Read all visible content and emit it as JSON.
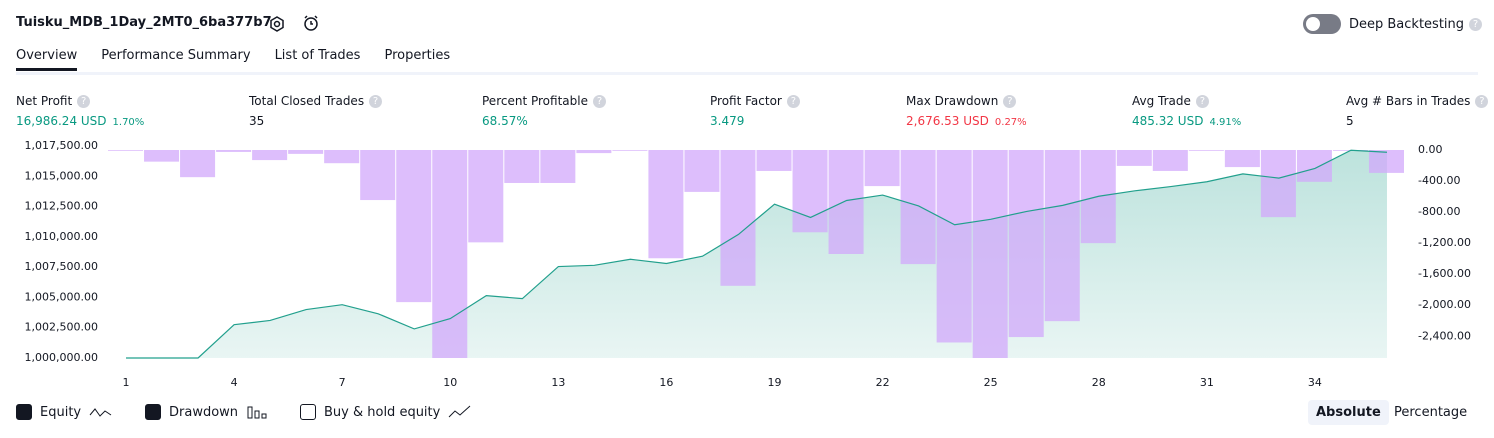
{
  "header": {
    "title": "Tuisku_MDB_1Day_2MT0_6ba377b7",
    "deep_backtesting": "Deep Backtesting"
  },
  "tabs": [
    "Overview",
    "Performance Summary",
    "List of Trades",
    "Properties"
  ],
  "metrics": [
    {
      "label": "Net Profit",
      "value": "16,986.24 USD",
      "pct": "1.70%",
      "tone": "pos"
    },
    {
      "label": "Total Closed Trades",
      "value": "35",
      "tone": "neutral"
    },
    {
      "label": "Percent Profitable",
      "value": "68.57%",
      "tone": "pos"
    },
    {
      "label": "Profit Factor",
      "value": "3.479",
      "tone": "pos"
    },
    {
      "label": "Max Drawdown",
      "value": "2,676.53 USD",
      "pct": "0.27%",
      "tone": "neg"
    },
    {
      "label": "Avg Trade",
      "value": "485.32 USD",
      "pct": "4.91%",
      "tone": "pos"
    },
    {
      "label": "Avg # Bars in Trades",
      "value": "5",
      "tone": "neutral"
    }
  ],
  "chart_data": {
    "type": "equity-drawdown",
    "x": [
      1,
      2,
      3,
      4,
      5,
      6,
      7,
      8,
      9,
      10,
      11,
      12,
      13,
      14,
      15,
      16,
      17,
      18,
      19,
      20,
      21,
      22,
      23,
      24,
      25,
      26,
      27,
      28,
      29,
      30,
      31,
      32,
      33,
      34,
      35,
      36
    ],
    "xlim": [
      0.5,
      36.5
    ],
    "xticks": [
      1,
      4,
      7,
      10,
      13,
      16,
      19,
      22,
      25,
      28,
      31,
      34
    ],
    "ylim": [
      1000000,
      1017500
    ],
    "yticks": [
      {
        "value": 1000000,
        "label": "1,000,000.00"
      },
      {
        "value": 1002500,
        "label": "1,002,500.00"
      },
      {
        "value": 1005000,
        "label": "1,005,000.00"
      },
      {
        "value": 1007500,
        "label": "1,007,500.00"
      },
      {
        "value": 1010000,
        "label": "1,010,000.00"
      },
      {
        "value": 1012500,
        "label": "1,012,500.00"
      },
      {
        "value": 1015000,
        "label": "1,015,000.00"
      },
      {
        "value": 1017500,
        "label": "1,017,500.00"
      }
    ],
    "y2lim": [
      -2680,
      0
    ],
    "y2ticks": [
      {
        "value": 0,
        "label": "0.00"
      },
      {
        "value": -400,
        "label": "-400.00"
      },
      {
        "value": -800,
        "label": "-800.00"
      },
      {
        "value": -1200,
        "label": "-1,200.00"
      },
      {
        "value": -1600,
        "label": "-1,600.00"
      },
      {
        "value": -2000,
        "label": "-2,000.00"
      },
      {
        "value": -2400,
        "label": "-2,400.00"
      }
    ],
    "series": [
      {
        "name": "Equity",
        "color": "#22a08d",
        "kind": "area",
        "values": [
          1000000,
          1000000,
          1000000,
          1002750,
          1003100,
          1004000,
          1004400,
          1003650,
          1002400,
          1003250,
          1005150,
          1004900,
          1007550,
          1007650,
          1008150,
          1007800,
          1008400,
          1010200,
          1012700,
          1011600,
          1013000,
          1013450,
          1012550,
          1011000,
          1011450,
          1012100,
          1012600,
          1013350,
          1013800,
          1014150,
          1014550,
          1015200,
          1014850,
          1015650,
          1017150,
          1016986
        ]
      },
      {
        "name": "Drawdown",
        "color": "#d1a8fb",
        "kind": "bar",
        "axis": "y2",
        "values": [
          -10,
          -150,
          -350,
          -25,
          -130,
          -50,
          -170,
          -645,
          -1960,
          -2680,
          -1190,
          -425,
          -425,
          -40,
          0,
          -1395,
          -540,
          -1750,
          -270,
          -1060,
          -1340,
          -465,
          -1470,
          -2480,
          -2680,
          -2410,
          -2205,
          -1200,
          -205,
          -270,
          0,
          -220,
          -865,
          -410,
          0,
          -295
        ]
      }
    ],
    "grid": false
  },
  "footer": {
    "buy_hold": "Buy & hold equity",
    "absolute": "Absolute",
    "percentage": "Percentage"
  }
}
